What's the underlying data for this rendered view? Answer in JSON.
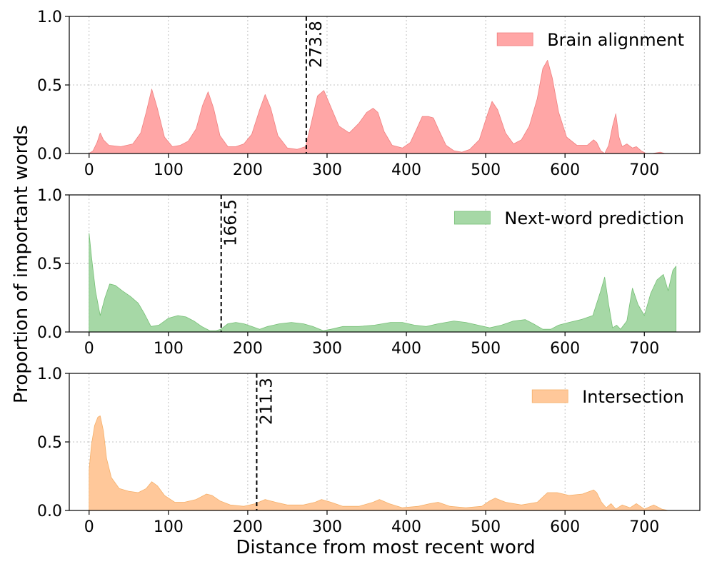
{
  "figure": {
    "ylabel": "Proportion of important words",
    "xlabel": "Distance from most recent word"
  },
  "chart_data": [
    {
      "type": "area",
      "legend": "Brain alignment",
      "legend_loc": "upper right",
      "color": "#f08080",
      "fill": "#ffa6a6",
      "xlim": [
        -25,
        770
      ],
      "ylim": [
        0,
        1.0
      ],
      "xticks": [
        0,
        100,
        200,
        300,
        400,
        500,
        600,
        700
      ],
      "yticks": [
        0.0,
        0.5,
        1.0
      ],
      "ytick_labels": [
        "0.0",
        "0.5",
        "1.0"
      ],
      "grid": true,
      "vline": {
        "x": 273.8,
        "label": "273.8"
      },
      "x": [
        0,
        5,
        10,
        14,
        18,
        25,
        40,
        55,
        65,
        72,
        79,
        86,
        95,
        105,
        115,
        125,
        135,
        143,
        150,
        157,
        165,
        175,
        185,
        195,
        205,
        215,
        222,
        229,
        238,
        250,
        262,
        273,
        280,
        288,
        296,
        304,
        315,
        328,
        340,
        350,
        358,
        364,
        372,
        382,
        395,
        405,
        413,
        420,
        428,
        434,
        441,
        450,
        460,
        470,
        480,
        492,
        502,
        508,
        515,
        525,
        535,
        545,
        555,
        565,
        572,
        578,
        584,
        592,
        602,
        615,
        628,
        636,
        640,
        645,
        650,
        655,
        660,
        664,
        668,
        672,
        678,
        685,
        690,
        696,
        702,
        710,
        720,
        726
      ],
      "y": [
        0.0,
        0.02,
        0.08,
        0.15,
        0.1,
        0.06,
        0.05,
        0.07,
        0.15,
        0.3,
        0.47,
        0.33,
        0.12,
        0.05,
        0.06,
        0.09,
        0.18,
        0.35,
        0.45,
        0.33,
        0.13,
        0.05,
        0.05,
        0.07,
        0.14,
        0.32,
        0.43,
        0.33,
        0.13,
        0.04,
        0.03,
        0.05,
        0.22,
        0.42,
        0.46,
        0.35,
        0.2,
        0.15,
        0.22,
        0.3,
        0.33,
        0.3,
        0.16,
        0.06,
        0.04,
        0.08,
        0.18,
        0.27,
        0.27,
        0.26,
        0.17,
        0.06,
        0.02,
        0.01,
        0.03,
        0.1,
        0.28,
        0.38,
        0.32,
        0.15,
        0.07,
        0.1,
        0.2,
        0.4,
        0.62,
        0.68,
        0.55,
        0.3,
        0.12,
        0.06,
        0.06,
        0.1,
        0.08,
        0.02,
        0.0,
        0.06,
        0.2,
        0.29,
        0.12,
        0.05,
        0.07,
        0.04,
        0.05,
        0.02,
        0.0,
        0.0,
        0.01,
        0.0
      ]
    },
    {
      "type": "area",
      "legend": "Next-word prediction",
      "legend_loc": "upper right",
      "color": "#77c077",
      "fill": "#a6d8a6",
      "xlim": [
        -25,
        770
      ],
      "ylim": [
        0,
        1.0
      ],
      "xticks": [
        0,
        100,
        200,
        300,
        400,
        500,
        600,
        700
      ],
      "yticks": [
        0.0,
        0.5,
        1.0
      ],
      "ytick_labels": [
        "0.0",
        "0.5",
        "1.0"
      ],
      "grid": true,
      "vline": {
        "x": 166.5,
        "label": "166.5"
      },
      "x": [
        0,
        3,
        8,
        14,
        20,
        26,
        33,
        42,
        52,
        62,
        70,
        78,
        88,
        100,
        112,
        122,
        132,
        142,
        152,
        160,
        166,
        175,
        185,
        195,
        205,
        215,
        225,
        240,
        255,
        270,
        282,
        295,
        305,
        320,
        340,
        360,
        380,
        395,
        410,
        425,
        440,
        460,
        475,
        490,
        505,
        520,
        535,
        550,
        560,
        572,
        582,
        592,
        605,
        620,
        635,
        645,
        650,
        655,
        660,
        665,
        670,
        678,
        685,
        692,
        700,
        708,
        716,
        724,
        730,
        736,
        740
      ],
      "y": [
        0.72,
        0.55,
        0.3,
        0.12,
        0.25,
        0.35,
        0.34,
        0.3,
        0.26,
        0.21,
        0.13,
        0.04,
        0.05,
        0.1,
        0.12,
        0.11,
        0.08,
        0.04,
        0.01,
        0.01,
        0.02,
        0.06,
        0.07,
        0.06,
        0.04,
        0.02,
        0.04,
        0.06,
        0.07,
        0.06,
        0.04,
        0.01,
        0.02,
        0.04,
        0.04,
        0.05,
        0.07,
        0.07,
        0.05,
        0.04,
        0.06,
        0.08,
        0.07,
        0.05,
        0.03,
        0.05,
        0.08,
        0.09,
        0.06,
        0.02,
        0.02,
        0.05,
        0.07,
        0.09,
        0.12,
        0.3,
        0.4,
        0.2,
        0.03,
        0.05,
        0.02,
        0.08,
        0.32,
        0.2,
        0.12,
        0.28,
        0.38,
        0.42,
        0.3,
        0.45,
        0.48
      ]
    },
    {
      "type": "area",
      "legend": "Intersection",
      "legend_loc": "upper right",
      "color": "#f5b06a",
      "fill": "#ffc89a",
      "xlim": [
        -25,
        770
      ],
      "ylim": [
        0,
        1.0
      ],
      "xticks": [
        0,
        100,
        200,
        300,
        400,
        500,
        600,
        700
      ],
      "yticks": [
        0.0,
        0.5,
        1.0
      ],
      "ytick_labels": [
        "0.0",
        "0.5",
        "1.0"
      ],
      "grid": true,
      "vline": {
        "x": 211.3,
        "label": "211.3"
      },
      "x": [
        0,
        3,
        7,
        11,
        14,
        18,
        22,
        28,
        38,
        50,
        62,
        72,
        79,
        86,
        95,
        108,
        120,
        135,
        148,
        155,
        165,
        178,
        195,
        210,
        222,
        235,
        250,
        270,
        285,
        293,
        305,
        320,
        340,
        358,
        366,
        378,
        395,
        415,
        430,
        440,
        455,
        475,
        495,
        505,
        512,
        525,
        545,
        565,
        578,
        590,
        605,
        622,
        636,
        640,
        646,
        652,
        658,
        664,
        672,
        682,
        690,
        700,
        712,
        722,
        730,
        736
      ],
      "y": [
        0.3,
        0.48,
        0.62,
        0.68,
        0.69,
        0.58,
        0.38,
        0.24,
        0.16,
        0.14,
        0.13,
        0.16,
        0.21,
        0.18,
        0.11,
        0.06,
        0.06,
        0.08,
        0.12,
        0.11,
        0.07,
        0.04,
        0.03,
        0.05,
        0.08,
        0.06,
        0.04,
        0.04,
        0.06,
        0.08,
        0.06,
        0.03,
        0.03,
        0.06,
        0.08,
        0.05,
        0.02,
        0.03,
        0.05,
        0.06,
        0.03,
        0.02,
        0.03,
        0.07,
        0.09,
        0.06,
        0.04,
        0.06,
        0.13,
        0.13,
        0.11,
        0.12,
        0.15,
        0.13,
        0.06,
        0.02,
        0.05,
        0.01,
        0.04,
        0.02,
        0.05,
        0.01,
        0.04,
        0.01,
        0.0,
        0.0
      ]
    }
  ]
}
